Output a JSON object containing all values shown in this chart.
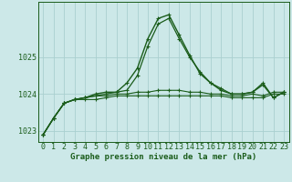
{
  "title": "Graphe pression niveau de la mer (hPa)",
  "bg_color": "#cce8e8",
  "grid_color": "#aad0d0",
  "line_color": "#1a5c1a",
  "x_labels": [
    "0",
    "1",
    "2",
    "3",
    "4",
    "5",
    "6",
    "7",
    "8",
    "9",
    "10",
    "11",
    "12",
    "13",
    "14",
    "15",
    "16",
    "17",
    "18",
    "19",
    "20",
    "21",
    "22",
    "23"
  ],
  "ylim": [
    1022.7,
    1026.5
  ],
  "yticks": [
    1023,
    1024,
    1025
  ],
  "series": [
    [
      1022.9,
      1023.35,
      1023.75,
      1023.85,
      1023.85,
      1023.85,
      1023.9,
      1023.95,
      1023.95,
      1023.95,
      1023.95,
      1023.95,
      1023.95,
      1023.95,
      1023.95,
      1023.95,
      1023.95,
      1023.95,
      1023.9,
      1023.9,
      1023.9,
      1023.9,
      1024.0,
      1024.0
    ],
    [
      1022.9,
      1023.35,
      1023.75,
      1023.85,
      1023.9,
      1023.95,
      1023.95,
      1024.0,
      1024.0,
      1024.05,
      1024.05,
      1024.1,
      1024.1,
      1024.1,
      1024.05,
      1024.05,
      1024.0,
      1024.0,
      1023.95,
      1023.95,
      1024.0,
      1023.95,
      1024.05,
      1024.05
    ],
    [
      1022.9,
      1023.35,
      1023.75,
      1023.85,
      1023.9,
      1023.95,
      1024.0,
      1024.05,
      1024.1,
      1024.5,
      1025.3,
      1025.9,
      1026.05,
      1025.5,
      1025.0,
      1024.6,
      1024.3,
      1024.15,
      1024.0,
      1024.0,
      1024.05,
      1024.3,
      1023.9,
      1024.05
    ],
    [
      1022.9,
      1023.35,
      1023.75,
      1023.85,
      1023.9,
      1024.0,
      1024.05,
      1024.05,
      1024.3,
      1024.7,
      1025.5,
      1026.05,
      1026.15,
      1025.6,
      1025.05,
      1024.55,
      1024.3,
      1024.1,
      1024.0,
      1024.0,
      1024.05,
      1024.25,
      1023.9,
      1024.05
    ]
  ],
  "title_fontsize": 6.5,
  "tick_fontsize": 6.0,
  "figsize": [
    3.2,
    2.0
  ],
  "dpi": 100
}
